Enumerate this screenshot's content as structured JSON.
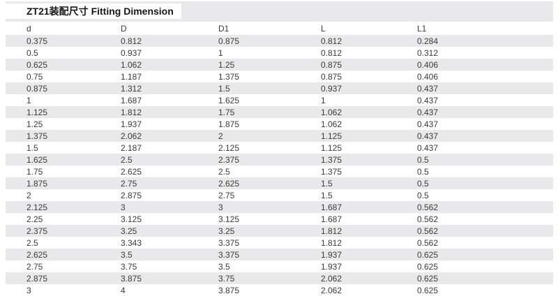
{
  "title": "ZT21装配尺寸 Fitting Dimension",
  "colors": {
    "stripe": "#e9e9eb",
    "text": "#3a3a3a",
    "title_text": "#161616",
    "background": "#ffffff"
  },
  "table": {
    "headers": [
      "d",
      "D",
      "D1",
      "L",
      "L1"
    ],
    "rows": [
      [
        "0.375",
        "0.812",
        "0.875",
        "0.812",
        "0.284"
      ],
      [
        "0.5",
        "0.937",
        "1",
        "0.812",
        "0.312"
      ],
      [
        "0.625",
        "1.062",
        "1.25",
        "0.875",
        "0.406"
      ],
      [
        "0.75",
        "1.187",
        "1.375",
        "0.875",
        "0.406"
      ],
      [
        "0.875",
        "1.312",
        "1.5",
        "0.937",
        "0.437"
      ],
      [
        "1",
        "1.687",
        "1.625",
        "1",
        "0.437"
      ],
      [
        "1.125",
        "1.812",
        "1.75",
        "1.062",
        "0.437"
      ],
      [
        "1.25",
        "1.937",
        "1.875",
        "1.062",
        "0.437"
      ],
      [
        "1.375",
        "2.062",
        "2",
        "1.125",
        "0.437"
      ],
      [
        "1.5",
        "2.187",
        "2.125",
        "1.125",
        "0.437"
      ],
      [
        "1.625",
        "2.5",
        "2.375",
        "1.375",
        "0.5"
      ],
      [
        "1.75",
        "2.625",
        "2.5",
        "1.375",
        "0.5"
      ],
      [
        "1.875",
        "2.75",
        "2.625",
        "1.5",
        "0.5"
      ],
      [
        "2",
        "2.875",
        "2.75",
        "1.5",
        "0.5"
      ],
      [
        "2.125",
        "3",
        "3",
        "1.687",
        "0.562"
      ],
      [
        "2.25",
        "3.125",
        "3.125",
        "1.687",
        "0.562"
      ],
      [
        "2.375",
        "3.25",
        "3.25",
        "1.812",
        "0.562"
      ],
      [
        "2.5",
        "3.343",
        "3.375",
        "1.812",
        "0.562"
      ],
      [
        "2.625",
        "3.5",
        "3.375",
        "1.937",
        "0.625"
      ],
      [
        "2.75",
        "3.75",
        "3.5",
        "1.937",
        "0.625"
      ],
      [
        "2.875",
        "3.875",
        "3.75",
        "2.062",
        "0.625"
      ],
      [
        "3",
        "4",
        "3.875",
        "2.062",
        "0.625"
      ]
    ]
  }
}
